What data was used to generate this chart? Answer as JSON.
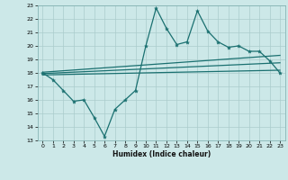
{
  "title": "",
  "xlabel": "Humidex (Indice chaleur)",
  "bg_color": "#cce8e8",
  "grid_color": "#aacccc",
  "line_color": "#1a7070",
  "xlim": [
    -0.5,
    23.5
  ],
  "ylim": [
    13,
    23
  ],
  "x_ticks": [
    0,
    1,
    2,
    3,
    4,
    5,
    6,
    7,
    8,
    9,
    10,
    11,
    12,
    13,
    14,
    15,
    16,
    17,
    18,
    19,
    20,
    21,
    22,
    23
  ],
  "y_ticks": [
    13,
    14,
    15,
    16,
    17,
    18,
    19,
    20,
    21,
    22,
    23
  ],
  "main_line_x": [
    0,
    1,
    2,
    3,
    4,
    5,
    6,
    7,
    8,
    9,
    10,
    11,
    12,
    13,
    14,
    15,
    16,
    17,
    18,
    19,
    20,
    21,
    22,
    23
  ],
  "main_line_y": [
    18.0,
    17.5,
    16.7,
    15.9,
    16.0,
    14.7,
    13.3,
    15.3,
    16.0,
    16.7,
    20.0,
    22.8,
    21.3,
    20.1,
    20.3,
    22.6,
    21.1,
    20.3,
    19.9,
    20.0,
    19.6,
    19.6,
    18.9,
    18.0
  ],
  "upper_line_x": [
    0,
    23
  ],
  "upper_line_y": [
    18.05,
    19.3
  ],
  "mid_line_x": [
    0,
    23
  ],
  "mid_line_y": [
    17.95,
    18.75
  ],
  "lower_line_x": [
    0,
    23
  ],
  "lower_line_y": [
    17.85,
    18.2
  ]
}
